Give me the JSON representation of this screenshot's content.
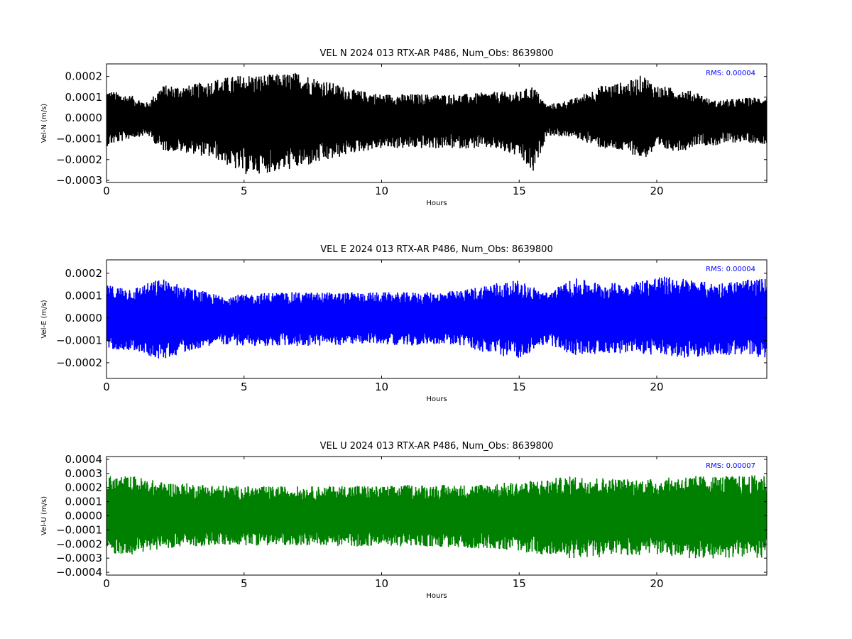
{
  "chart_data": [
    {
      "type": "line",
      "title": "VEL N 2024 013 RTX-AR  P486, Num_Obs: 8639800",
      "xlabel": "Hours",
      "ylabel": "Vel-N (m/s)",
      "xlim": [
        0,
        24
      ],
      "ylim": [
        -0.00031,
        0.00026
      ],
      "xticks": [
        0,
        5,
        10,
        15,
        20
      ],
      "xtick_labels": [
        "0",
        "5",
        "10",
        "15",
        "20"
      ],
      "yticks": [
        0.0002,
        0.0001,
        0.0,
        -0.0001,
        -0.0002,
        -0.0003
      ],
      "ytick_labels": [
        "0.0002",
        "0.0001",
        "0.0000",
        "−0.0001",
        "−0.0002",
        "−0.0003"
      ],
      "color": "#000000",
      "annotation": "RMS:  0.00004",
      "grid": false,
      "series": [
        {
          "x": [
            0,
            1,
            1.5,
            2,
            3,
            4,
            5,
            6,
            7,
            8,
            9,
            10,
            11,
            12,
            13,
            14,
            15,
            15.5,
            16,
            17,
            18,
            19,
            19.5,
            20,
            21,
            21.5,
            22,
            23,
            24
          ],
          "upper": [
            0.00013,
            0.0001,
            7e-05,
            0.00015,
            0.00015,
            0.00018,
            0.0002,
            0.0002,
            0.00021,
            0.00017,
            0.00013,
            0.00011,
            0.00011,
            0.00011,
            0.00011,
            0.00012,
            0.00012,
            0.00015,
            6e-05,
            9e-05,
            0.00015,
            0.00017,
            0.0002,
            0.00015,
            0.00013,
            0.00012,
            8e-05,
            9e-05,
            0.0001
          ],
          "lower": [
            -0.00013,
            -9e-05,
            -8e-05,
            -0.00015,
            -0.00016,
            -0.00019,
            -0.00026,
            -0.00025,
            -0.00023,
            -0.0002,
            -0.00016,
            -0.00014,
            -0.00014,
            -0.00014,
            -0.00014,
            -0.00014,
            -0.00018,
            -0.00026,
            -8e-05,
            -9e-05,
            -0.00014,
            -0.00016,
            -0.00019,
            -0.00015,
            -0.00015,
            -0.00012,
            -0.00013,
            -0.00011,
            -0.00012
          ]
        }
      ]
    },
    {
      "type": "line",
      "title": "VEL E 2024 013 RTX-AR  P486, Num_Obs: 8639800",
      "xlabel": "Hours",
      "ylabel": "Vel-E (m/s)",
      "xlim": [
        0,
        24
      ],
      "ylim": [
        -0.00027,
        0.00026
      ],
      "xticks": [
        0,
        5,
        10,
        15,
        20
      ],
      "xtick_labels": [
        "0",
        "5",
        "10",
        "15",
        "20"
      ],
      "yticks": [
        0.0002,
        0.0001,
        0.0,
        -0.0001,
        -0.0002
      ],
      "ytick_labels": [
        "0.0002",
        "0.0001",
        "0.0000",
        "−0.0001",
        "−0.0002"
      ],
      "color": "#0000ff",
      "annotation": "RMS:  0.00004",
      "grid": false,
      "series": [
        {
          "x": [
            0,
            1,
            2,
            3,
            4,
            5,
            6,
            7,
            8,
            9,
            10,
            11,
            12,
            13,
            14,
            15,
            16,
            17,
            18,
            19,
            20,
            21,
            22,
            23,
            24
          ],
          "upper": [
            0.00014,
            0.00013,
            0.00017,
            0.00013,
            0.0001,
            0.0001,
            0.00011,
            0.00011,
            0.00011,
            0.00011,
            0.00011,
            0.00011,
            0.00011,
            0.00012,
            0.00015,
            0.00016,
            0.00011,
            0.00017,
            0.00015,
            0.00015,
            0.00018,
            0.00017,
            0.00015,
            0.00016,
            0.00017
          ],
          "lower": [
            -0.00013,
            -0.00014,
            -0.00018,
            -0.00014,
            -0.00011,
            -0.00012,
            -0.00012,
            -0.00012,
            -0.00012,
            -0.00011,
            -0.00011,
            -0.00012,
            -0.00011,
            -0.00012,
            -0.00016,
            -0.00017,
            -0.00011,
            -0.00016,
            -0.00015,
            -0.00015,
            -0.00016,
            -0.00017,
            -0.00016,
            -0.00016,
            -0.00017
          ]
        }
      ]
    },
    {
      "type": "line",
      "title": "VEL U 2024 013 RTX-AR  P486, Num_Obs: 8639800",
      "xlabel": "Hours",
      "ylabel": "Vel-U (m/s)",
      "xlim": [
        0,
        24
      ],
      "ylim": [
        -0.00042,
        0.00042
      ],
      "xticks": [
        0,
        5,
        10,
        15,
        20
      ],
      "xtick_labels": [
        "0",
        "5",
        "10",
        "15",
        "20"
      ],
      "yticks": [
        0.0004,
        0.0003,
        0.0002,
        0.0001,
        0.0,
        -0.0001,
        -0.0002,
        -0.0003,
        -0.0004
      ],
      "ytick_labels": [
        "0.0004",
        "0.0003",
        "0.0002",
        "0.0001",
        "0.0000",
        "−0.0001",
        "−0.0002",
        "−0.0003",
        "−0.0004"
      ],
      "color": "#008000",
      "annotation": "RMS:  0.00007",
      "grid": false,
      "series": [
        {
          "x": [
            0,
            1,
            2,
            3,
            4,
            5,
            6,
            7,
            8,
            9,
            10,
            11,
            12,
            13,
            14,
            15,
            16,
            17,
            18,
            19,
            20,
            21,
            22,
            23,
            24
          ],
          "upper": [
            0.00027,
            0.00027,
            0.00023,
            0.00022,
            0.00021,
            0.0002,
            0.0002,
            0.0002,
            0.0002,
            0.00021,
            0.0002,
            0.00021,
            0.00021,
            0.00021,
            0.00022,
            0.00023,
            0.00025,
            0.00027,
            0.00026,
            0.00025,
            0.00025,
            0.00027,
            0.00027,
            0.00027,
            0.00028
          ],
          "lower": [
            -0.00026,
            -0.00026,
            -0.00022,
            -0.00021,
            -0.0002,
            -0.0002,
            -0.0002,
            -0.0002,
            -0.0002,
            -0.00021,
            -0.0002,
            -0.00021,
            -0.00021,
            -0.00022,
            -0.00022,
            -0.00024,
            -0.00027,
            -0.00029,
            -0.00028,
            -0.00027,
            -0.00026,
            -0.00029,
            -0.00029,
            -0.00028,
            -0.00029
          ]
        }
      ]
    }
  ]
}
